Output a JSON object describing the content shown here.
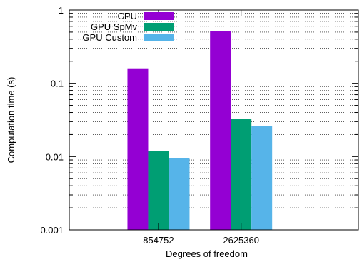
{
  "chart_data": {
    "type": "bar",
    "categories": [
      "854752",
      "2625360"
    ],
    "series": [
      {
        "name": "CPU",
        "values": [
          0.16,
          0.52
        ],
        "color": "#9400d3"
      },
      {
        "name": "GPU SpMv",
        "values": [
          0.0118,
          0.0325
        ],
        "color": "#009e73"
      },
      {
        "name": "GPU Custom",
        "values": [
          0.0096,
          0.026
        ],
        "color": "#56b4e9"
      }
    ],
    "xlabel": "Degrees of freedom",
    "ylabel": "Computation time (s)",
    "yscale": "log",
    "ylim": [
      0.001,
      1
    ],
    "yticks": [
      {
        "value": 0.001,
        "label": "0.001"
      },
      {
        "value": 0.01,
        "label": "0.01"
      },
      {
        "value": 0.1,
        "label": "0.1"
      },
      {
        "value": 1,
        "label": "1"
      }
    ],
    "grid": "horizontal-minor-dotted",
    "legend_position": "top-left"
  }
}
